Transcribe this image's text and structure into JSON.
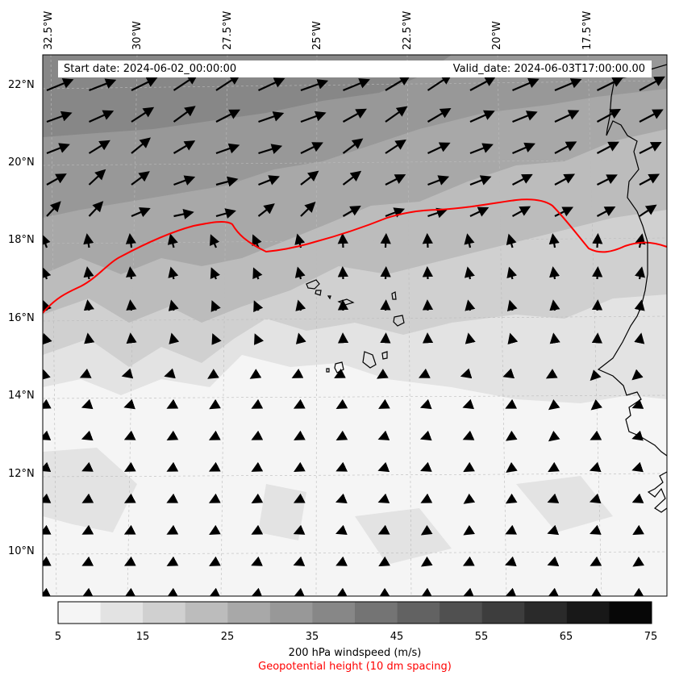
{
  "header": {
    "start_date": "Start date: 2024-06-02_00:00:00",
    "valid_date": "Valid_date: 2024-06-03T17:00:00.00"
  },
  "lon_labels": [
    "32.5°W",
    "30°W",
    "27.5°W",
    "25°W",
    "22.5°W",
    "20°W",
    "17.5°W"
  ],
  "lat_labels": [
    "22°N",
    "20°N",
    "18°N",
    "16°N",
    "14°N",
    "12°N",
    "10°N"
  ],
  "colorbar": {
    "ticks": [
      "5",
      "15",
      "25",
      "35",
      "45",
      "55",
      "65",
      "75"
    ],
    "levels": [
      5,
      10,
      15,
      20,
      25,
      30,
      35,
      40,
      45,
      50,
      55,
      60,
      65,
      70,
      75
    ],
    "colors": [
      "#f5f5f5",
      "#e3e3e3",
      "#d0d0d0",
      "#bcbcbc",
      "#a8a8a8",
      "#989898",
      "#878787",
      "#747474",
      "#626262",
      "#505050",
      "#3d3d3d",
      "#2a2a2a",
      "#181818",
      "#070707"
    ],
    "label": "200 hPa windspeed (m/s)",
    "sublabel": "Geopotential height (10 dm spacing)",
    "sublabel_color": "#ff0000"
  },
  "contour_color": "#ff0000"
}
